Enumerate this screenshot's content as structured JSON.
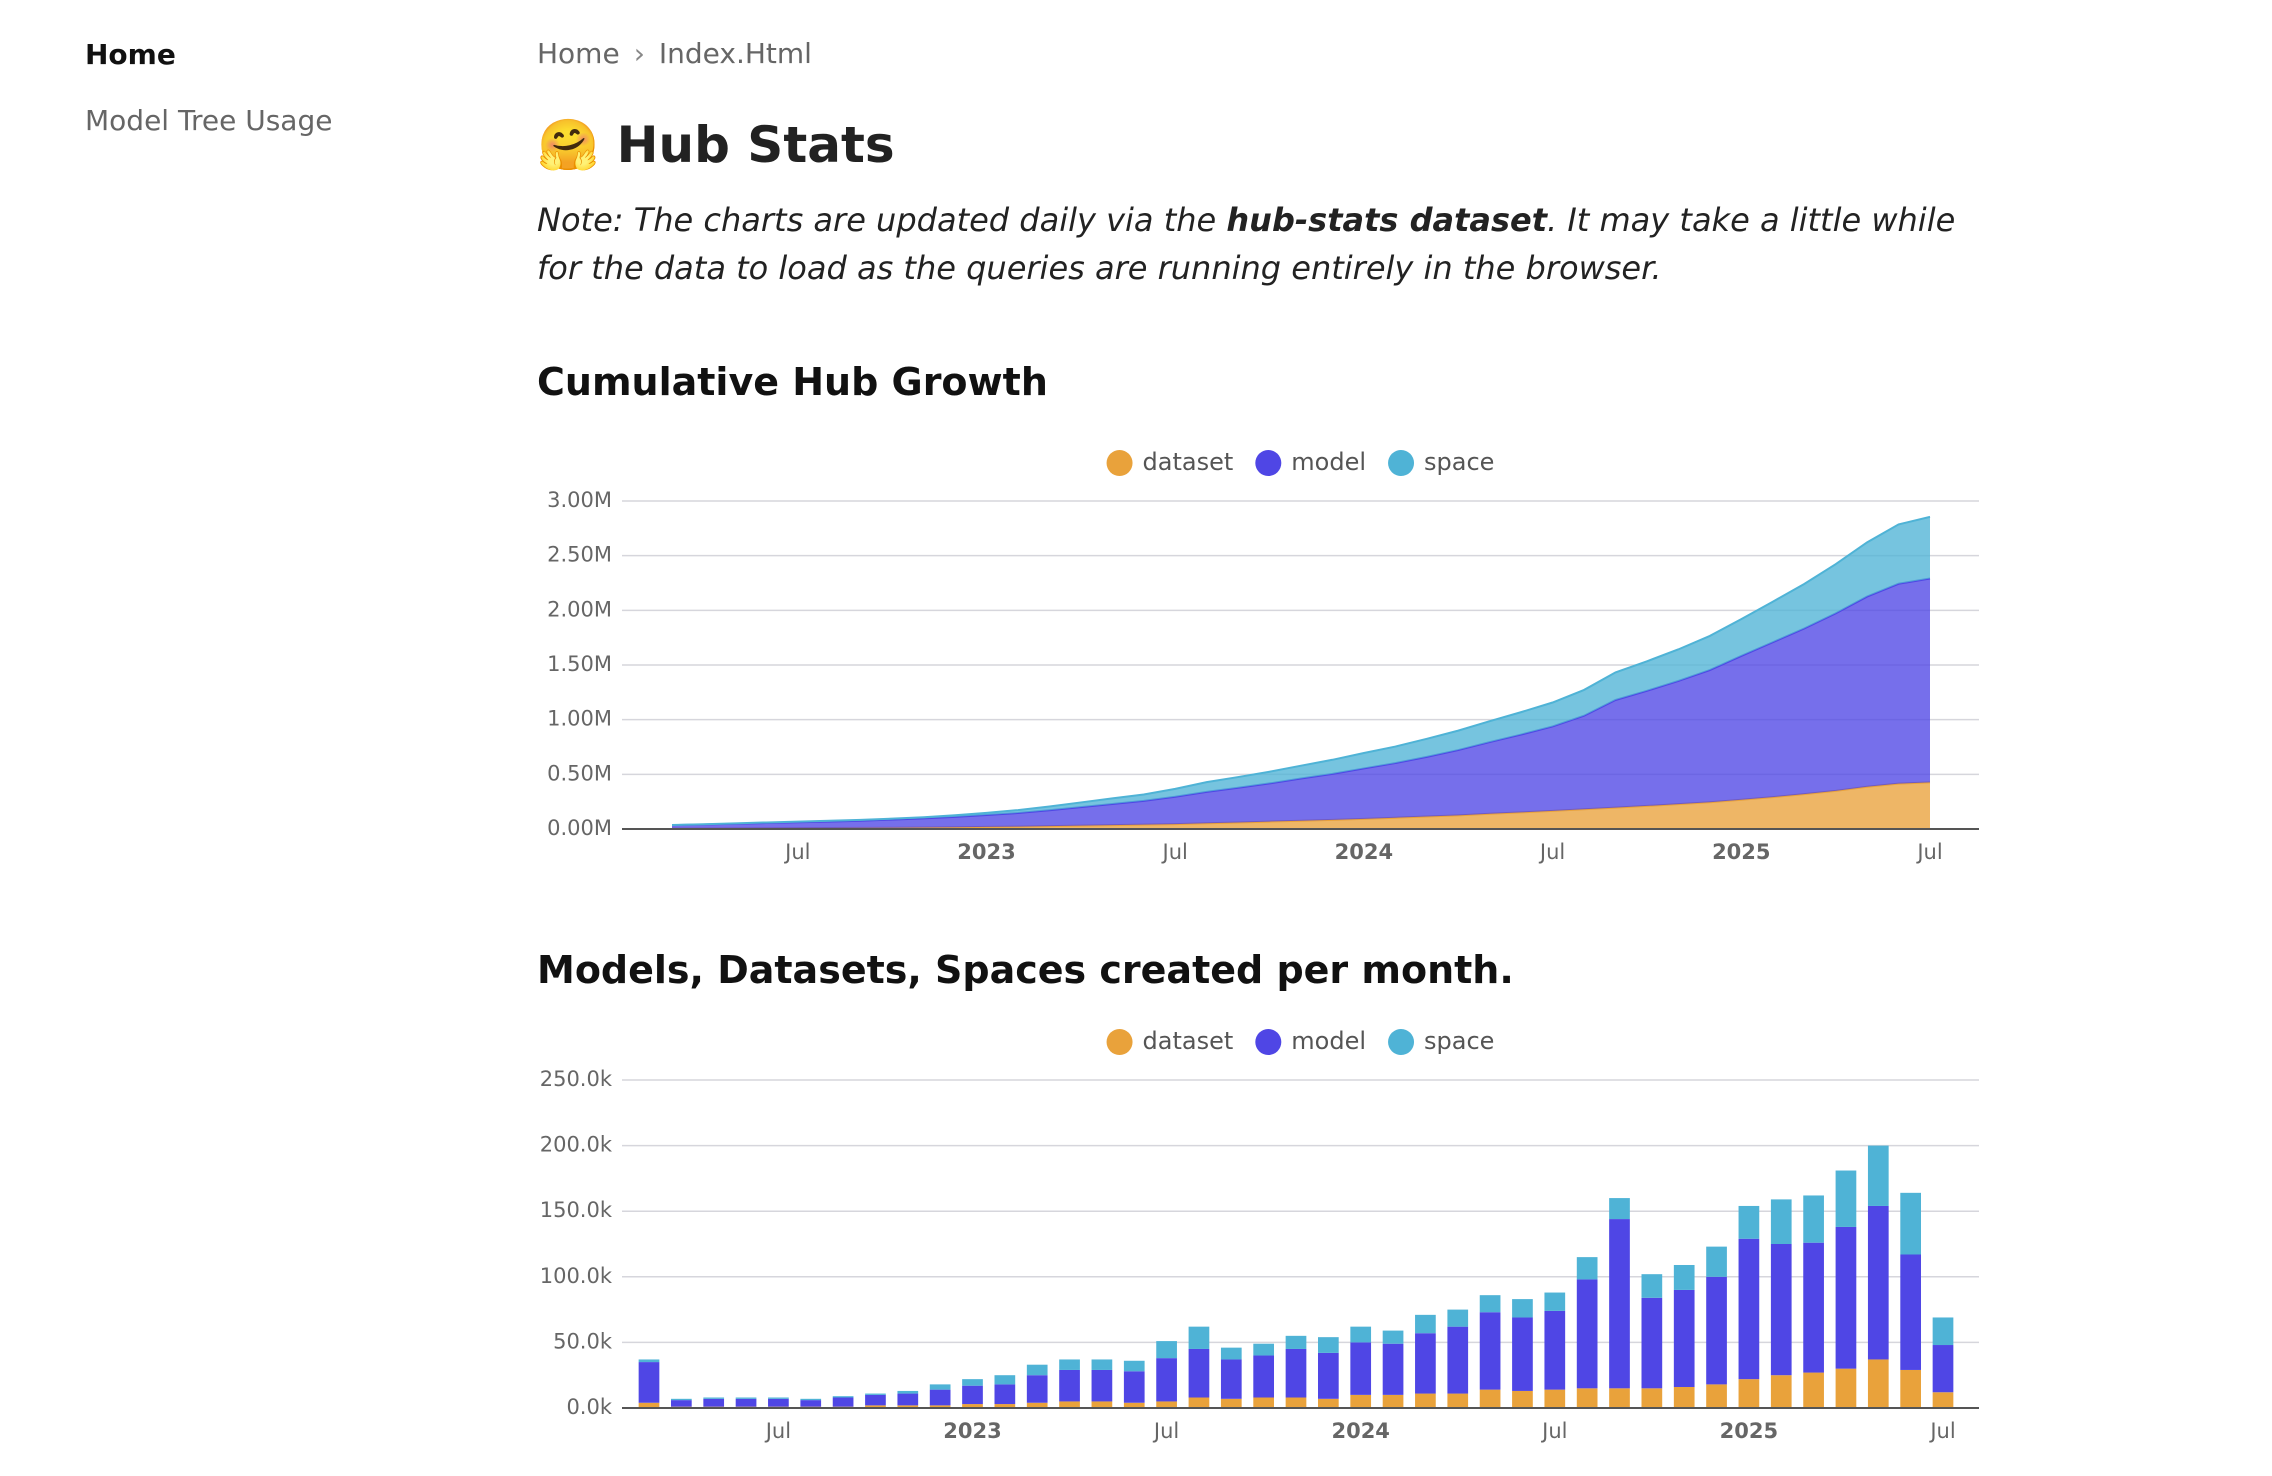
{
  "sidebar": [
    "Home",
    "Model Tree Usage"
  ],
  "breadcrumb": [
    "Home",
    "Index.Html"
  ],
  "title": "🤗 Hub Stats",
  "note": [
    "Note: The charts are updated daily via the ",
    "hub-stats dataset",
    ". It may take a little while for the data to load as the queries are running entirely in the browser."
  ],
  "chart_data": [
    {
      "type": "area",
      "stacked": true,
      "title": "Cumulative Hub Growth",
      "x": [
        "2022-03",
        "2022-04",
        "2022-05",
        "2022-06",
        "2022-07",
        "2022-08",
        "2022-09",
        "2022-10",
        "2022-11",
        "2022-12",
        "2023-01",
        "2023-02",
        "2023-03",
        "2023-04",
        "2023-05",
        "2023-06",
        "2023-07",
        "2023-08",
        "2023-09",
        "2023-10",
        "2023-11",
        "2023-12",
        "2024-01",
        "2024-02",
        "2024-03",
        "2024-04",
        "2024-05",
        "2024-06",
        "2024-07",
        "2024-08",
        "2024-09",
        "2024-10",
        "2024-11",
        "2024-12",
        "2025-01",
        "2025-02",
        "2025-03",
        "2025-04",
        "2025-05",
        "2025-06",
        "2025-07"
      ],
      "series": [
        {
          "name": "dataset",
          "color": "#e9a23b",
          "values": [
            4000,
            5000,
            6000,
            7000,
            8000,
            9000,
            10000,
            12000,
            14000,
            16000,
            19000,
            22000,
            26000,
            31000,
            36000,
            40000,
            45000,
            53000,
            60000,
            68000,
            76000,
            83000,
            93000,
            103000,
            114000,
            125000,
            139000,
            152000,
            166000,
            181000,
            196000,
            211000,
            227000,
            245000,
            267000,
            292000,
            319000,
            349000,
            386000,
            415000,
            427000
          ]
        },
        {
          "name": "model",
          "color": "#4f46e5",
          "values": [
            31000,
            36000,
            42000,
            48000,
            54000,
            59000,
            66000,
            74000,
            83000,
            95000,
            109000,
            124000,
            145000,
            169000,
            193000,
            217000,
            250000,
            287000,
            317000,
            349000,
            386000,
            421000,
            461000,
            500000,
            546000,
            597000,
            656000,
            712000,
            772000,
            855000,
            984000,
            1053000,
            1127000,
            1209000,
            1316000,
            1416000,
            1515000,
            1623000,
            1740000,
            1828000,
            1864000
          ]
        },
        {
          "name": "space",
          "color": "#4fb3d6",
          "values": [
            2000,
            3000,
            4000,
            5000,
            6000,
            7000,
            8000,
            9000,
            11000,
            15000,
            20000,
            27000,
            35000,
            43000,
            51000,
            59000,
            72000,
            89000,
            98000,
            107000,
            117000,
            129000,
            141000,
            151000,
            165000,
            178000,
            191000,
            205000,
            219000,
            236000,
            252000,
            270000,
            289000,
            312000,
            337000,
            371000,
            407000,
            450000,
            496000,
            543000,
            564000
          ]
        }
      ],
      "ylim": [
        0,
        3000000
      ],
      "yticks": [
        {
          "value": 0,
          "label": "0.00M"
        },
        {
          "value": 500000,
          "label": "0.50M"
        },
        {
          "value": 1000000,
          "label": "1.00M"
        },
        {
          "value": 1500000,
          "label": "1.50M"
        },
        {
          "value": 2000000,
          "label": "2.00M"
        },
        {
          "value": 2500000,
          "label": "2.50M"
        },
        {
          "value": 3000000,
          "label": "3.00M"
        }
      ],
      "xticks": [
        {
          "value": "2022-07",
          "label": "Jul"
        },
        {
          "value": "2023-01",
          "label": "2023"
        },
        {
          "value": "2023-07",
          "label": "Jul"
        },
        {
          "value": "2024-01",
          "label": "2024"
        },
        {
          "value": "2024-07",
          "label": "Jul"
        },
        {
          "value": "2025-01",
          "label": "2025"
        },
        {
          "value": "2025-07",
          "label": "Jul"
        }
      ],
      "grid": true,
      "legend": "top"
    },
    {
      "type": "bar",
      "stacked": true,
      "title": "Models, Datasets, Spaces created per month.",
      "x": [
        "2022-03",
        "2022-04",
        "2022-05",
        "2022-06",
        "2022-07",
        "2022-08",
        "2022-09",
        "2022-10",
        "2022-11",
        "2022-12",
        "2023-01",
        "2023-02",
        "2023-03",
        "2023-04",
        "2023-05",
        "2023-06",
        "2023-07",
        "2023-08",
        "2023-09",
        "2023-10",
        "2023-11",
        "2023-12",
        "2024-01",
        "2024-02",
        "2024-03",
        "2024-04",
        "2024-05",
        "2024-06",
        "2024-07",
        "2024-08",
        "2024-09",
        "2024-10",
        "2024-11",
        "2024-12",
        "2025-01",
        "2025-02",
        "2025-03",
        "2025-04",
        "2025-05",
        "2025-06",
        "2025-07"
      ],
      "series": [
        {
          "name": "dataset",
          "color": "#e9a23b",
          "values": [
            4000,
            1000,
            1000,
            1000,
            1000,
            1000,
            1000,
            2000,
            2000,
            2000,
            3000,
            3000,
            4000,
            5000,
            5000,
            4000,
            5000,
            8000,
            7000,
            8000,
            8000,
            7000,
            10000,
            10000,
            11000,
            11000,
            14000,
            13000,
            14000,
            15000,
            15000,
            15000,
            16000,
            18000,
            22000,
            25000,
            27000,
            30000,
            37000,
            29000,
            12000
          ]
        },
        {
          "name": "model",
          "color": "#4f46e5",
          "values": [
            31000,
            5000,
            6000,
            6000,
            6000,
            5000,
            7000,
            8000,
            9000,
            12000,
            14000,
            15000,
            21000,
            24000,
            24000,
            24000,
            33000,
            37000,
            30000,
            32000,
            37000,
            35000,
            40000,
            39000,
            46000,
            51000,
            59000,
            56000,
            60000,
            83000,
            129000,
            69000,
            74000,
            82000,
            107000,
            100000,
            99000,
            108000,
            117000,
            88000,
            36000
          ]
        },
        {
          "name": "space",
          "color": "#4fb3d6",
          "values": [
            2000,
            1000,
            1000,
            1000,
            1000,
            1000,
            1000,
            1000,
            2000,
            4000,
            5000,
            7000,
            8000,
            8000,
            8000,
            8000,
            13000,
            17000,
            9000,
            9000,
            10000,
            12000,
            12000,
            10000,
            14000,
            13000,
            13000,
            14000,
            14000,
            17000,
            16000,
            18000,
            19000,
            23000,
            25000,
            34000,
            36000,
            43000,
            46000,
            47000,
            21000
          ]
        }
      ],
      "ylim": [
        0,
        250000
      ],
      "yticks": [
        {
          "value": 0,
          "label": "0.0k"
        },
        {
          "value": 50000,
          "label": "50.0k"
        },
        {
          "value": 100000,
          "label": "100.0k"
        },
        {
          "value": 150000,
          "label": "150.0k"
        },
        {
          "value": 200000,
          "label": "200.0k"
        },
        {
          "value": 250000,
          "label": "250.0k"
        }
      ],
      "xticks": [
        {
          "value": "2022-07",
          "label": "Jul"
        },
        {
          "value": "2023-01",
          "label": "2023"
        },
        {
          "value": "2023-07",
          "label": "Jul"
        },
        {
          "value": "2024-01",
          "label": "2024"
        },
        {
          "value": "2024-07",
          "label": "Jul"
        },
        {
          "value": "2025-01",
          "label": "2025"
        },
        {
          "value": "2025-07",
          "label": "Jul"
        }
      ],
      "grid": true,
      "legend": "top"
    }
  ]
}
